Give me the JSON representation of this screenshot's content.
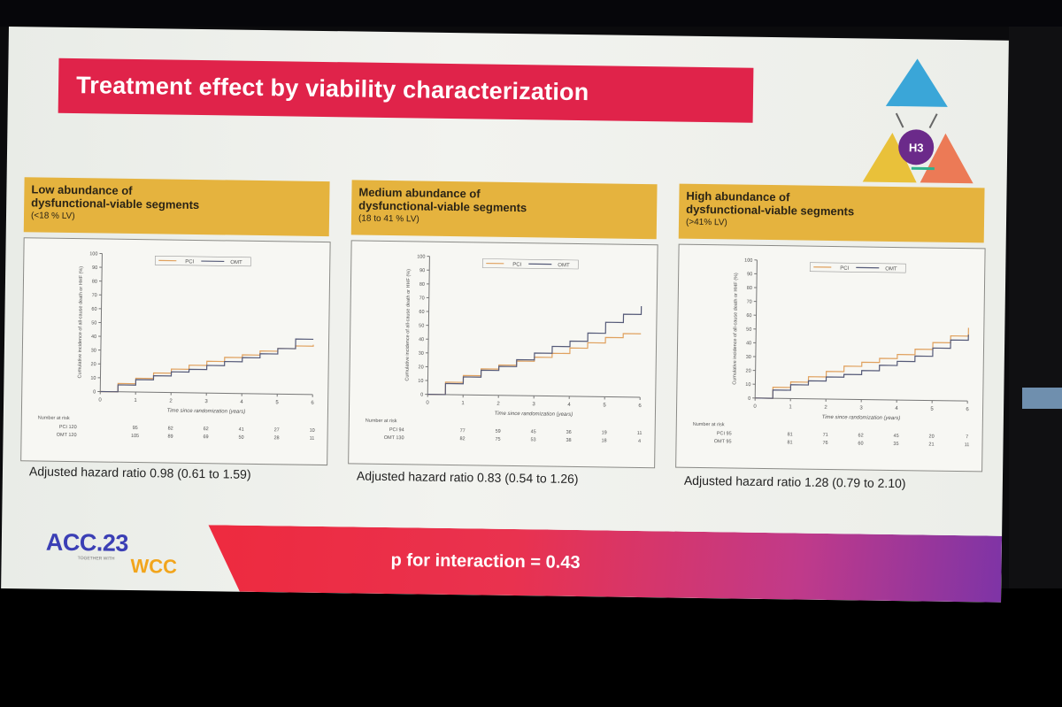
{
  "slide": {
    "title": "Treatment effect by viability characterization",
    "logo_label": "H3",
    "footer_text": "p for interaction = 0.43",
    "brand_acc": "ACC.23",
    "brand_sub": "TOGETHER WITH",
    "brand_wcc": "WCC"
  },
  "colors": {
    "title_bar": "#e0234a",
    "panel_header": "#e5b33e",
    "pci_line": "#e0a15e",
    "omt_line": "#555a78"
  },
  "panels": [
    {
      "head1": "Low abundance of",
      "head2": "dysfunctional-viable segments",
      "head3": "(<18 % LV)",
      "hazard": "Adjusted hazard ratio 0.98 (0.61 to 1.59)"
    },
    {
      "head1": "Medium abundance of",
      "head2": "dysfunctional-viable segments",
      "head3": "(18 to 41 % LV)",
      "hazard": "Adjusted hazard ratio 0.83  (0.54 to 1.26)"
    },
    {
      "head1": "High abundance of",
      "head2": "dysfunctional-viable segments",
      "head3": "(>41%  LV)",
      "hazard": "Adjusted hazard ratio 1.28  (0.79 to 2.10)"
    }
  ],
  "chart_data": [
    {
      "type": "line",
      "title": "Low abundance of dysfunctional-viable segments (<18 % LV)",
      "xlabel": "Time since randomization (years)",
      "ylabel": "Cumulative incidence of all-cause death or HHF (%)",
      "xlim": [
        0,
        6
      ],
      "ylim": [
        0,
        100
      ],
      "x_ticks": [
        0,
        1,
        2,
        3,
        4,
        5,
        6
      ],
      "y_ticks": [
        0,
        10,
        20,
        30,
        40,
        50,
        60,
        70,
        80,
        90,
        100
      ],
      "legend": [
        "PCI",
        "OMT"
      ],
      "series": [
        {
          "name": "PCI",
          "x": [
            0,
            0.5,
            1,
            1.5,
            2,
            2.5,
            3,
            3.5,
            4,
            4.5,
            5,
            5.5,
            6
          ],
          "y": [
            0,
            6,
            10,
            14,
            17,
            20,
            23,
            26,
            28,
            31,
            33,
            35,
            36
          ]
        },
        {
          "name": "OMT",
          "x": [
            0,
            0.5,
            1,
            1.5,
            2,
            2.5,
            3,
            3.5,
            4,
            4.5,
            5,
            5.5,
            6
          ],
          "y": [
            0,
            5,
            9,
            12,
            15,
            17,
            20,
            23,
            26,
            29,
            33,
            40,
            40
          ]
        }
      ],
      "risk_table": {
        "label": "Number at risk",
        "rows": [
          {
            "name": "PCI",
            "n": 120,
            "values": [
              120,
              95,
              82,
              62,
              41,
              27,
              10
            ]
          },
          {
            "name": "OMT",
            "n": 120,
            "values": [
              120,
              105,
              89,
              69,
              50,
              28,
              11
            ]
          }
        ]
      },
      "hazard_ratio": 0.98,
      "ci": [
        0.61,
        1.59
      ]
    },
    {
      "type": "line",
      "title": "Medium abundance of dysfunctional-viable segments (18 to 41 % LV)",
      "xlabel": "Time since randomization (years)",
      "ylabel": "Cumulative incidence of all-cause death or HHF (%)",
      "xlim": [
        0,
        6
      ],
      "ylim": [
        0,
        100
      ],
      "x_ticks": [
        0,
        1,
        2,
        3,
        4,
        5,
        6
      ],
      "y_ticks": [
        0,
        10,
        20,
        30,
        40,
        50,
        60,
        70,
        80,
        90,
        100
      ],
      "legend": [
        "PCI",
        "OMT"
      ],
      "series": [
        {
          "name": "PCI",
          "x": [
            0,
            0.5,
            1,
            1.5,
            2,
            2.5,
            3,
            3.5,
            4,
            4.5,
            5,
            5.5,
            6
          ],
          "y": [
            0,
            9,
            14,
            19,
            22,
            25,
            28,
            31,
            35,
            39,
            43,
            46,
            46
          ]
        },
        {
          "name": "OMT",
          "x": [
            0,
            0.5,
            1,
            1.5,
            2,
            2.5,
            3,
            3.5,
            4,
            4.5,
            5,
            5.5,
            6
          ],
          "y": [
            0,
            8,
            13,
            18,
            21,
            26,
            31,
            36,
            40,
            46,
            54,
            60,
            66
          ]
        }
      ],
      "risk_table": {
        "label": "Number at risk",
        "rows": [
          {
            "name": "PCI",
            "n": 94,
            "values": [
              94,
              77,
              59,
              45,
              36,
              19,
              11
            ]
          },
          {
            "name": "OMT",
            "n": 130,
            "values": [
              130,
              82,
              75,
              53,
              38,
              18,
              4
            ]
          }
        ]
      },
      "hazard_ratio": 0.83,
      "ci": [
        0.54,
        1.26
      ]
    },
    {
      "type": "line",
      "title": "High abundance of dysfunctional-viable segments (>41% LV)",
      "xlabel": "Time since randomization (years)",
      "ylabel": "Cumulative incidence of all-cause death or HHF (%)",
      "xlim": [
        0,
        6
      ],
      "ylim": [
        0,
        100
      ],
      "x_ticks": [
        0,
        1,
        2,
        3,
        4,
        5,
        6
      ],
      "y_ticks": [
        0,
        10,
        20,
        30,
        40,
        50,
        60,
        70,
        80,
        90,
        100
      ],
      "legend": [
        "PCI",
        "OMT"
      ],
      "series": [
        {
          "name": "PCI",
          "x": [
            0,
            0.5,
            1,
            1.5,
            2,
            2.5,
            3,
            3.5,
            4,
            4.5,
            5,
            5.5,
            6
          ],
          "y": [
            0,
            8,
            12,
            16,
            20,
            24,
            27,
            30,
            33,
            37,
            42,
            47,
            53
          ]
        },
        {
          "name": "OMT",
          "x": [
            0,
            0.5,
            1,
            1.5,
            2,
            2.5,
            3,
            3.5,
            4,
            4.5,
            5,
            5.5,
            6
          ],
          "y": [
            0,
            6,
            10,
            13,
            16,
            18,
            21,
            25,
            28,
            32,
            38,
            44,
            48
          ]
        }
      ],
      "risk_table": {
        "label": "Number at risk",
        "rows": [
          {
            "name": "PCI",
            "n": 95,
            "values": [
              95,
              81,
              71,
              62,
              45,
              20,
              7
            ]
          },
          {
            "name": "OMT",
            "n": 95,
            "values": [
              95,
              81,
              76,
              60,
              35,
              21,
              11
            ]
          }
        ]
      },
      "hazard_ratio": 1.28,
      "ci": [
        0.79,
        2.1
      ]
    }
  ]
}
